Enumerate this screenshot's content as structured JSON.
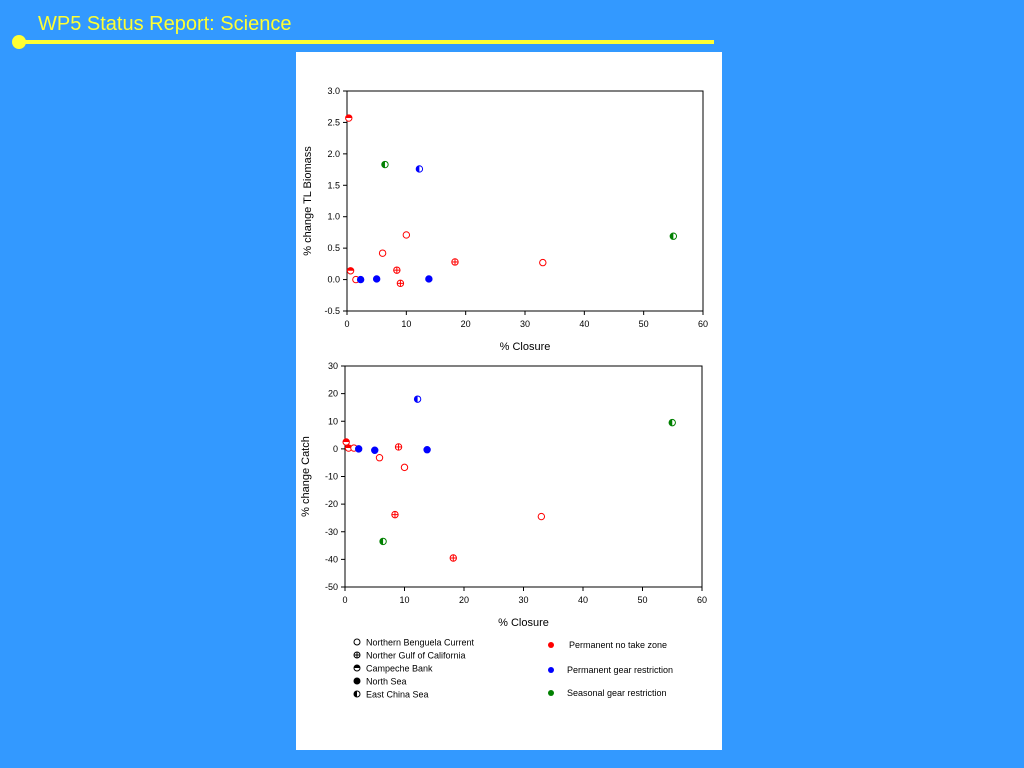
{
  "slide": {
    "title": "WP5 Status Report: Science",
    "accent_color": "#ffff33",
    "background_color": "#3399ff"
  },
  "chart_data": [
    {
      "type": "scatter",
      "xlabel": "% Closure",
      "ylabel": "% change TL Biomass",
      "xlim": [
        0,
        60
      ],
      "ylim": [
        -0.5,
        3.0
      ],
      "xticks": [
        "0",
        "10",
        "20",
        "30",
        "40",
        "50",
        "60"
      ],
      "yticks": [
        "-0.5",
        "0.0",
        "0.5",
        "1.0",
        "1.5",
        "2.0",
        "2.5",
        "3.0"
      ],
      "points": [
        {
          "x": 0.3,
          "y": 2.57,
          "marker": "half-top",
          "color": "#ff0000"
        },
        {
          "x": 0.6,
          "y": 0.14,
          "marker": "half-top",
          "color": "#ff0000"
        },
        {
          "x": 1.5,
          "y": 0.0,
          "marker": "open",
          "color": "#ff0000"
        },
        {
          "x": 6.0,
          "y": 0.42,
          "marker": "open",
          "color": "#ff0000"
        },
        {
          "x": 8.4,
          "y": 0.15,
          "marker": "cross",
          "color": "#ff0000"
        },
        {
          "x": 9.0,
          "y": -0.06,
          "marker": "cross",
          "color": "#ff0000"
        },
        {
          "x": 10.0,
          "y": 0.71,
          "marker": "open",
          "color": "#ff0000"
        },
        {
          "x": 18.2,
          "y": 0.28,
          "marker": "cross",
          "color": "#ff0000"
        },
        {
          "x": 33.0,
          "y": 0.27,
          "marker": "open",
          "color": "#ff0000"
        },
        {
          "x": 2.3,
          "y": 0.0,
          "marker": "filled",
          "color": "#0000ff"
        },
        {
          "x": 5.0,
          "y": 0.01,
          "marker": "filled",
          "color": "#0000ff"
        },
        {
          "x": 13.8,
          "y": 0.01,
          "marker": "filled",
          "color": "#0000ff"
        },
        {
          "x": 12.2,
          "y": 1.76,
          "marker": "half-left",
          "color": "#0000ff"
        },
        {
          "x": 6.4,
          "y": 1.83,
          "marker": "half-left",
          "color": "#008000"
        },
        {
          "x": 55.0,
          "y": 0.69,
          "marker": "half-left",
          "color": "#008000"
        }
      ]
    },
    {
      "type": "scatter",
      "xlabel": "% Closure",
      "ylabel": "% change Catch",
      "xlim": [
        0,
        60
      ],
      "ylim": [
        -50,
        30
      ],
      "xticks": [
        "0",
        "10",
        "20",
        "30",
        "40",
        "50",
        "60"
      ],
      "yticks": [
        "-50",
        "-40",
        "-30",
        "-20",
        "-10",
        "0",
        "10",
        "20",
        "30"
      ],
      "points": [
        {
          "x": 0.2,
          "y": 2.5,
          "marker": "half-top",
          "color": "#ff0000"
        },
        {
          "x": 0.6,
          "y": 0.3,
          "marker": "half-top",
          "color": "#ff0000"
        },
        {
          "x": 1.5,
          "y": 0.3,
          "marker": "open",
          "color": "#ff0000"
        },
        {
          "x": 5.8,
          "y": -3.2,
          "marker": "open",
          "color": "#ff0000"
        },
        {
          "x": 9.0,
          "y": 0.7,
          "marker": "cross",
          "color": "#ff0000"
        },
        {
          "x": 10.0,
          "y": -6.7,
          "marker": "open",
          "color": "#ff0000"
        },
        {
          "x": 8.4,
          "y": -23.8,
          "marker": "cross",
          "color": "#ff0000"
        },
        {
          "x": 18.2,
          "y": -39.5,
          "marker": "cross",
          "color": "#ff0000"
        },
        {
          "x": 33.0,
          "y": -24.5,
          "marker": "open",
          "color": "#ff0000"
        },
        {
          "x": 2.3,
          "y": 0.0,
          "marker": "filled",
          "color": "#0000ff"
        },
        {
          "x": 5.0,
          "y": -0.5,
          "marker": "filled",
          "color": "#0000ff"
        },
        {
          "x": 13.8,
          "y": -0.3,
          "marker": "filled",
          "color": "#0000ff"
        },
        {
          "x": 12.2,
          "y": 18.0,
          "marker": "half-left",
          "color": "#0000ff"
        },
        {
          "x": 6.4,
          "y": -33.5,
          "marker": "half-left",
          "color": "#008000"
        },
        {
          "x": 55.0,
          "y": 9.5,
          "marker": "half-left",
          "color": "#008000"
        }
      ]
    }
  ],
  "legend": {
    "markers": [
      {
        "label": "Northern Benguela Current",
        "marker": "open"
      },
      {
        "label": "Norther Gulf of California",
        "marker": "cross"
      },
      {
        "label": "Campeche Bank",
        "marker": "half-top"
      },
      {
        "label": "North Sea",
        "marker": "filled"
      },
      {
        "label": "East China Sea",
        "marker": "half-left"
      }
    ],
    "colors": [
      {
        "label": "Permanent no take zone",
        "color": "#ff0000"
      },
      {
        "label": "Permanent gear restriction",
        "color": "#0000ff"
      },
      {
        "label": "Seasonal gear restriction",
        "color": "#008000"
      }
    ]
  }
}
